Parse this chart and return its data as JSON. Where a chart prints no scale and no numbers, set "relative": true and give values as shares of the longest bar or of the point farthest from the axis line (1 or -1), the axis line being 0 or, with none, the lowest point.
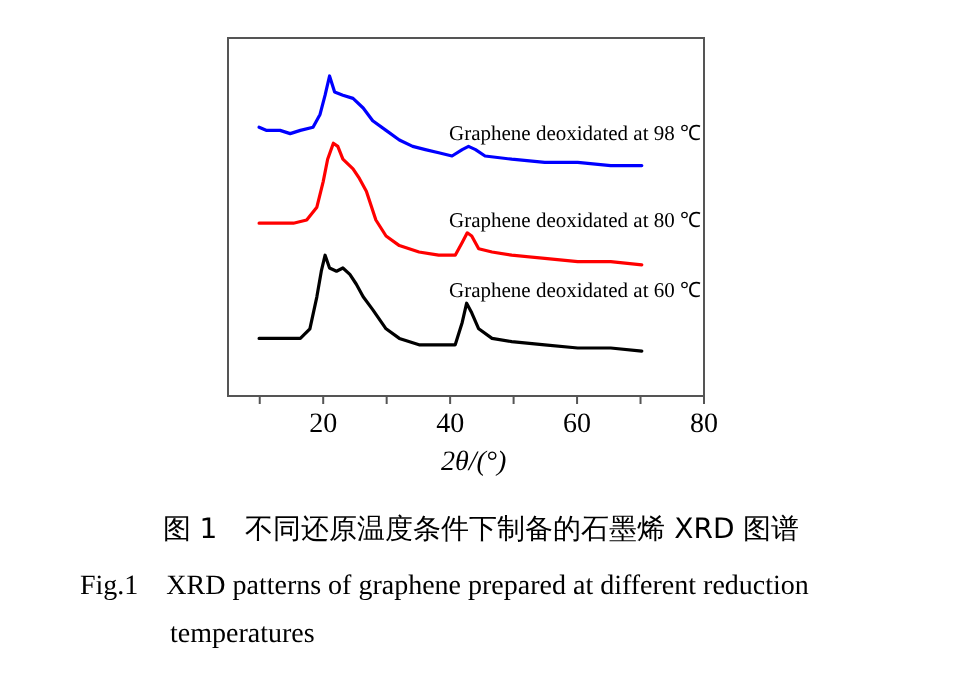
{
  "chart_data": {
    "type": "line",
    "relative": true,
    "xlabel": "2θ/(°)",
    "xlim": [
      5,
      80
    ],
    "xticks": [
      {
        "value": 10,
        "label": null
      },
      20,
      {
        "value": 30,
        "label": null
      },
      40,
      {
        "value": 50,
        "label": null
      },
      60,
      {
        "value": 70,
        "label": null
      },
      80
    ],
    "series": [
      {
        "name": "Graphene deoxidated at 98 ℃",
        "color": "#0000ff",
        "x": [
          9.9,
          11.1,
          13.2,
          14.8,
          16.4,
          18.4,
          19.5,
          20.3,
          21.0,
          21.8,
          23.1,
          24.7,
          26.3,
          27.8,
          29.9,
          32.0,
          34.1,
          36.1,
          38.2,
          40.3,
          41.9,
          42.9,
          44.0,
          45.5,
          49.7,
          54.9,
          60.1,
          65.3,
          70.2
        ],
        "values": [
          0.84,
          0.83,
          0.83,
          0.82,
          0.83,
          0.84,
          0.88,
          0.94,
          1.0,
          0.95,
          0.94,
          0.93,
          0.9,
          0.86,
          0.83,
          0.8,
          0.78,
          0.77,
          0.76,
          0.75,
          0.77,
          0.78,
          0.77,
          0.75,
          0.74,
          0.73,
          0.73,
          0.72,
          0.72
        ]
      },
      {
        "name": "Graphene deoxidated at 80 ℃",
        "color": "#ff0000",
        "x": [
          9.9,
          13.2,
          15.3,
          17.4,
          19.0,
          20.0,
          20.7,
          21.6,
          22.3,
          23.1,
          24.7,
          25.7,
          26.8,
          28.3,
          29.9,
          32.0,
          35.1,
          38.2,
          40.8,
          41.9,
          42.7,
          43.4,
          44.5,
          46.6,
          49.7,
          54.9,
          60.1,
          65.3,
          70.2
        ],
        "values": [
          0.54,
          0.54,
          0.54,
          0.55,
          0.59,
          0.67,
          0.74,
          0.79,
          0.78,
          0.74,
          0.71,
          0.68,
          0.64,
          0.55,
          0.5,
          0.47,
          0.45,
          0.44,
          0.44,
          0.48,
          0.51,
          0.5,
          0.46,
          0.45,
          0.44,
          0.43,
          0.42,
          0.42,
          0.41
        ]
      },
      {
        "name": "Graphene deoxidated at 60 ℃",
        "color": "#000000",
        "x": [
          9.9,
          13.2,
          16.4,
          17.9,
          19.0,
          19.7,
          20.3,
          21.0,
          22.1,
          23.1,
          24.2,
          25.2,
          26.3,
          27.8,
          29.9,
          32.0,
          35.1,
          38.2,
          40.8,
          41.9,
          42.6,
          43.4,
          44.5,
          46.6,
          49.7,
          54.9,
          60.1,
          65.3,
          70.2
        ],
        "values": [
          0.18,
          0.18,
          0.18,
          0.21,
          0.31,
          0.39,
          0.44,
          0.4,
          0.39,
          0.4,
          0.38,
          0.35,
          0.31,
          0.27,
          0.21,
          0.18,
          0.16,
          0.16,
          0.16,
          0.23,
          0.29,
          0.26,
          0.21,
          0.18,
          0.17,
          0.16,
          0.15,
          0.15,
          0.14
        ]
      }
    ],
    "annotations": [
      "图 1　不同还原温度条件下制备的石墨烯 XRD 图谱",
      "Fig.1　XRD patterns of graphene prepared at different reduction temperatures"
    ]
  }
}
